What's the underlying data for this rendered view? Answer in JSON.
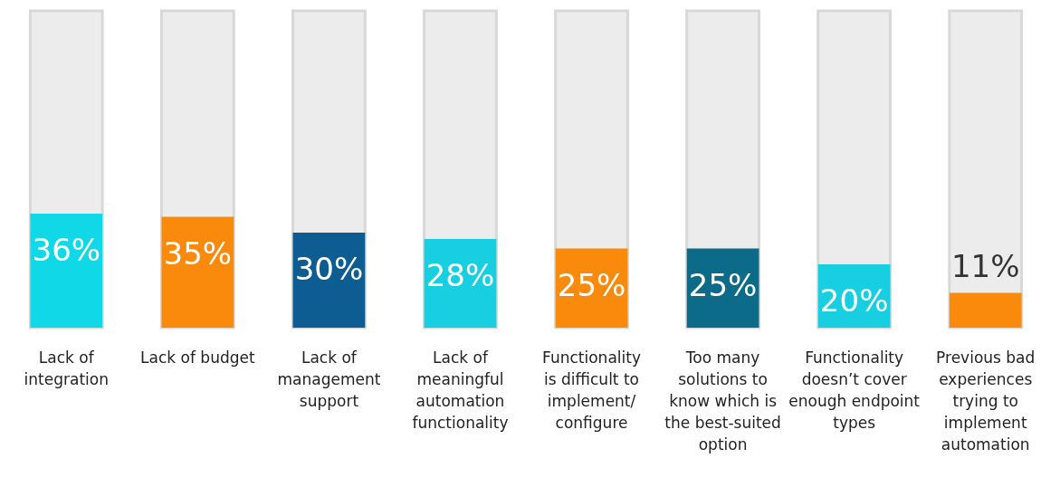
{
  "chart_data": {
    "type": "bar",
    "categories": [
      "Lack of integration",
      "Lack of budget",
      "Lack of management support",
      "Lack of meaningful automation functionality",
      "Functionality is difficult to implement/ configure",
      "Too many solutions to know which is the best-suited option",
      "Functionality doesn’t cover enough endpoint types",
      "Previous bad experiences trying to implement automation"
    ],
    "values": [
      36,
      35,
      30,
      28,
      25,
      25,
      20,
      11
    ],
    "value_labels": [
      "36%",
      "35%",
      "30%",
      "28%",
      "25%",
      "25%",
      "20%",
      "11%"
    ],
    "colors": [
      "#11d8e6",
      "#f98a0c",
      "#0d5d92",
      "#17cfe0",
      "#f98a0c",
      "#0c6b88",
      "#17cfe0",
      "#f98a0c"
    ],
    "ylim": [
      0,
      100
    ],
    "tick_labels": "x"
  }
}
